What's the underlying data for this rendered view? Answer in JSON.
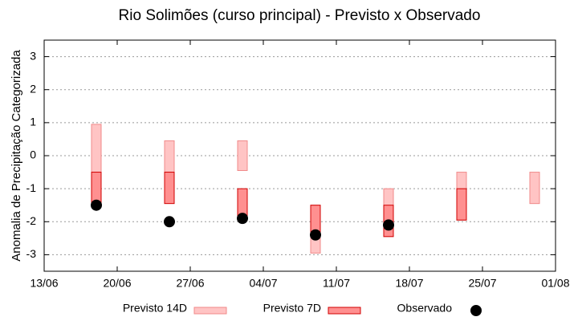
{
  "chart_data": {
    "type": "range-bar",
    "title": "Rio Solimões (curso principal) - Previsto x Observado",
    "y_label": "Anomalia de Precipitação Categorizada",
    "x": [
      "18/06",
      "25/06",
      "02/07",
      "09/07",
      "16/07",
      "23/07",
      "30/07"
    ],
    "xlim": [
      "13/06",
      "01/08"
    ],
    "xticks": [
      "13/06",
      "20/06",
      "27/06",
      "04/07",
      "11/07",
      "18/07",
      "25/07",
      "01/08"
    ],
    "ylim": [
      -3.5,
      3.5
    ],
    "yticks": [
      -3,
      -2,
      -1,
      0,
      1,
      2,
      3
    ],
    "grid": true,
    "legend": "bottom",
    "series": [
      {
        "name": "Previsto 14D",
        "kind": "range",
        "color": "#ffc4c4",
        "edge": "#f08a8a",
        "low": [
          -0.5,
          -0.5,
          -0.45,
          -2.95,
          -2.45,
          -1.95,
          -1.45
        ],
        "high": [
          0.95,
          0.45,
          0.45,
          -1.5,
          -1.0,
          -0.5,
          -0.5
        ]
      },
      {
        "name": "Previsto 7D",
        "kind": "range",
        "color": "#ff9090",
        "edge": "#d00000",
        "low": [
          -1.5,
          -1.45,
          -1.9,
          -2.4,
          -2.45,
          -1.95,
          null
        ],
        "high": [
          -0.5,
          -0.5,
          -1.0,
          -1.5,
          -1.5,
          -1.0,
          null
        ]
      },
      {
        "name": "Observado",
        "kind": "point",
        "color": "#000000",
        "values": [
          -1.5,
          -2.0,
          -1.9,
          -2.4,
          -2.1,
          null,
          null
        ]
      }
    ]
  }
}
